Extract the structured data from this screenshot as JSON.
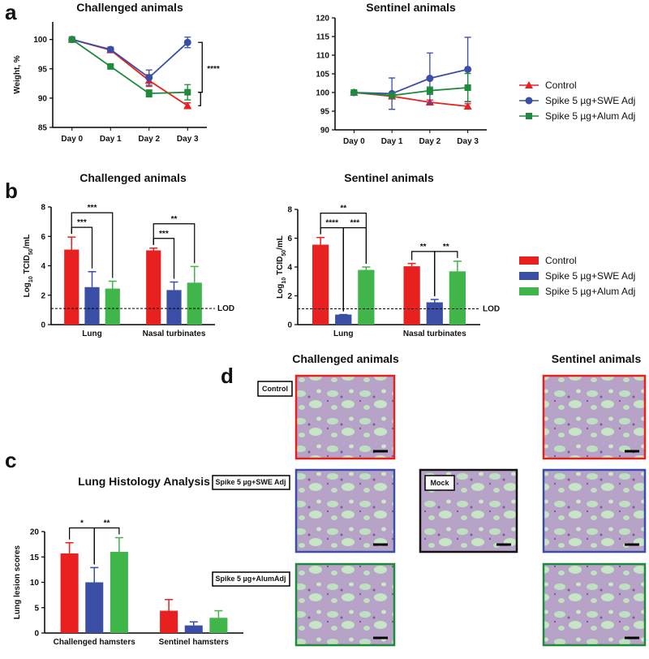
{
  "panel_labels": [
    "a",
    "b",
    "c",
    "d"
  ],
  "chart_data": [
    {
      "type": "line",
      "title": "Challenged animals",
      "y_label": "Weight, %",
      "categories": [
        "Day 0",
        "Day 1",
        "Day 2",
        "Day 3"
      ],
      "ylim": [
        85,
        103
      ],
      "yticks": [
        85,
        90,
        95,
        100
      ],
      "series": [
        {
          "color": "#e8201f",
          "marker": "triangle",
          "values": [
            100,
            98.2,
            93,
            88.7
          ],
          "errors": [
            0,
            0.3,
            1.0,
            0.5
          ]
        },
        {
          "color": "#3a4ea6",
          "marker": "circle",
          "values": [
            100,
            98.3,
            93.5,
            99.5
          ],
          "errors": [
            0,
            0.4,
            1.3,
            0.9
          ]
        },
        {
          "color": "#1f8a3c",
          "marker": "square",
          "values": [
            100,
            95.4,
            90.8,
            91
          ],
          "errors": [
            0,
            0.2,
            0.6,
            1.3
          ]
        }
      ],
      "annotations": [
        {
          "label": "****",
          "category": 3,
          "series": [
            1,
            2,
            0
          ]
        }
      ]
    },
    {
      "type": "line",
      "title": "Sentinel animals",
      "categories": [
        "Day 0",
        "Day 1",
        "Day 2",
        "Day 3"
      ],
      "ylim": [
        90,
        120
      ],
      "yticks": [
        90,
        95,
        100,
        105,
        110,
        115,
        120
      ],
      "series": [
        {
          "name": "Control",
          "color": "#e8201f",
          "marker": "triangle",
          "values": [
            100,
            99,
            97.4,
            96.3
          ],
          "errors": [
            0,
            0.5,
            0.6,
            0.7
          ]
        },
        {
          "name": "Spike 5 µg+SWE Adj",
          "color": "#3a4ea6",
          "marker": "circle",
          "values": [
            100,
            99.7,
            103.8,
            106.2
          ],
          "errors": [
            0,
            4.2,
            6.8,
            8.6
          ]
        },
        {
          "name": "Spike 5 µg+Alum Adj",
          "color": "#1f8a3c",
          "marker": "square",
          "values": [
            100,
            99.2,
            100.5,
            101.3
          ],
          "errors": [
            0,
            0.5,
            1.0,
            3.8
          ]
        }
      ]
    },
    {
      "type": "bar",
      "title": "Challenged animals",
      "y_label": [
        "Log",
        "10",
        " TCID",
        "50",
        "/mL"
      ],
      "categories": [
        "Lung",
        "Nasal turbinates"
      ],
      "ylim": [
        0,
        8
      ],
      "yticks": [
        0,
        2,
        4,
        6,
        8
      ],
      "ref_line": {
        "value": 1.1,
        "label": "LOD"
      },
      "series": [
        {
          "color": "#e8201f",
          "values": [
            5.1,
            5.05
          ],
          "errors": [
            0.85,
            0.15
          ]
        },
        {
          "color": "#3a4ea6",
          "values": [
            2.55,
            2.35
          ],
          "errors": [
            1.05,
            0.55
          ]
        },
        {
          "color": "#3fb54a",
          "values": [
            2.45,
            2.85
          ],
          "errors": [
            0.5,
            1.1
          ]
        }
      ],
      "annotations": [
        {
          "label": "***",
          "category": 0,
          "series": [
            0,
            1
          ]
        },
        {
          "label": "***",
          "category": 0,
          "series": [
            0,
            2
          ]
        },
        {
          "label": "***",
          "category": 1,
          "series": [
            0,
            1
          ]
        },
        {
          "label": "**",
          "category": 1,
          "series": [
            0,
            2
          ]
        }
      ]
    },
    {
      "type": "bar",
      "title": "Sentinel animals",
      "y_label": [
        "Log",
        "10",
        " TCID",
        "50",
        "/mL"
      ],
      "categories": [
        "Lung",
        "Nasal turbinates"
      ],
      "ylim": [
        0,
        8
      ],
      "yticks": [
        0,
        2,
        4,
        6,
        8
      ],
      "ref_line": {
        "value": 1.1,
        "label": "LOD"
      },
      "series": [
        {
          "name": "Control",
          "color": "#e8201f",
          "values": [
            5.55,
            4.05
          ],
          "errors": [
            0.5,
            0.2
          ]
        },
        {
          "name": "Spike 5 µg+SWE Adj",
          "color": "#3a4ea6",
          "values": [
            0.7,
            1.55
          ],
          "errors": [
            0,
            0.2
          ]
        },
        {
          "name": "Spike 5 µg+Alum Adj",
          "color": "#3fb54a",
          "values": [
            3.8,
            3.7
          ],
          "errors": [
            0.2,
            0.7
          ]
        }
      ],
      "annotations": [
        {
          "label": "**",
          "category": 0,
          "series": [
            0,
            2
          ]
        },
        {
          "label": "****",
          "category": 0,
          "series": [
            0,
            1
          ]
        },
        {
          "label": "***",
          "category": 0,
          "series": [
            1,
            2
          ]
        },
        {
          "label": "**",
          "category": 1,
          "series": [
            0,
            1
          ]
        },
        {
          "label": "**",
          "category": 1,
          "series": [
            1,
            2
          ]
        }
      ]
    },
    {
      "type": "bar",
      "title": "Lung Histology Analysis",
      "y_label": "Lung lesion scores",
      "categories": [
        "Challenged hamsters",
        "Sentinel hamsters"
      ],
      "ylim": [
        0,
        20
      ],
      "yticks": [
        0,
        5,
        10,
        15,
        20
      ],
      "series": [
        {
          "color": "#e8201f",
          "values": [
            15.7,
            4.4
          ],
          "errors": [
            2.1,
            2.2
          ]
        },
        {
          "color": "#3a4ea6",
          "values": [
            10,
            1.5
          ],
          "errors": [
            2.9,
            0.7
          ]
        },
        {
          "color": "#3fb54a",
          "values": [
            16,
            3.0
          ],
          "errors": [
            2.8,
            1.4
          ]
        }
      ],
      "annotations": [
        {
          "label": "*",
          "category": 0,
          "series": [
            0,
            1
          ]
        },
        {
          "label": "**",
          "category": 0,
          "series": [
            1,
            2
          ]
        }
      ]
    }
  ],
  "histology": {
    "headers": [
      "Challenged animals",
      "Sentinel animals"
    ],
    "labels": [
      "Control",
      "Spike 5 µg+SWE Adj",
      "Mock",
      "Spike 5 µg+AlumAdj"
    ]
  }
}
